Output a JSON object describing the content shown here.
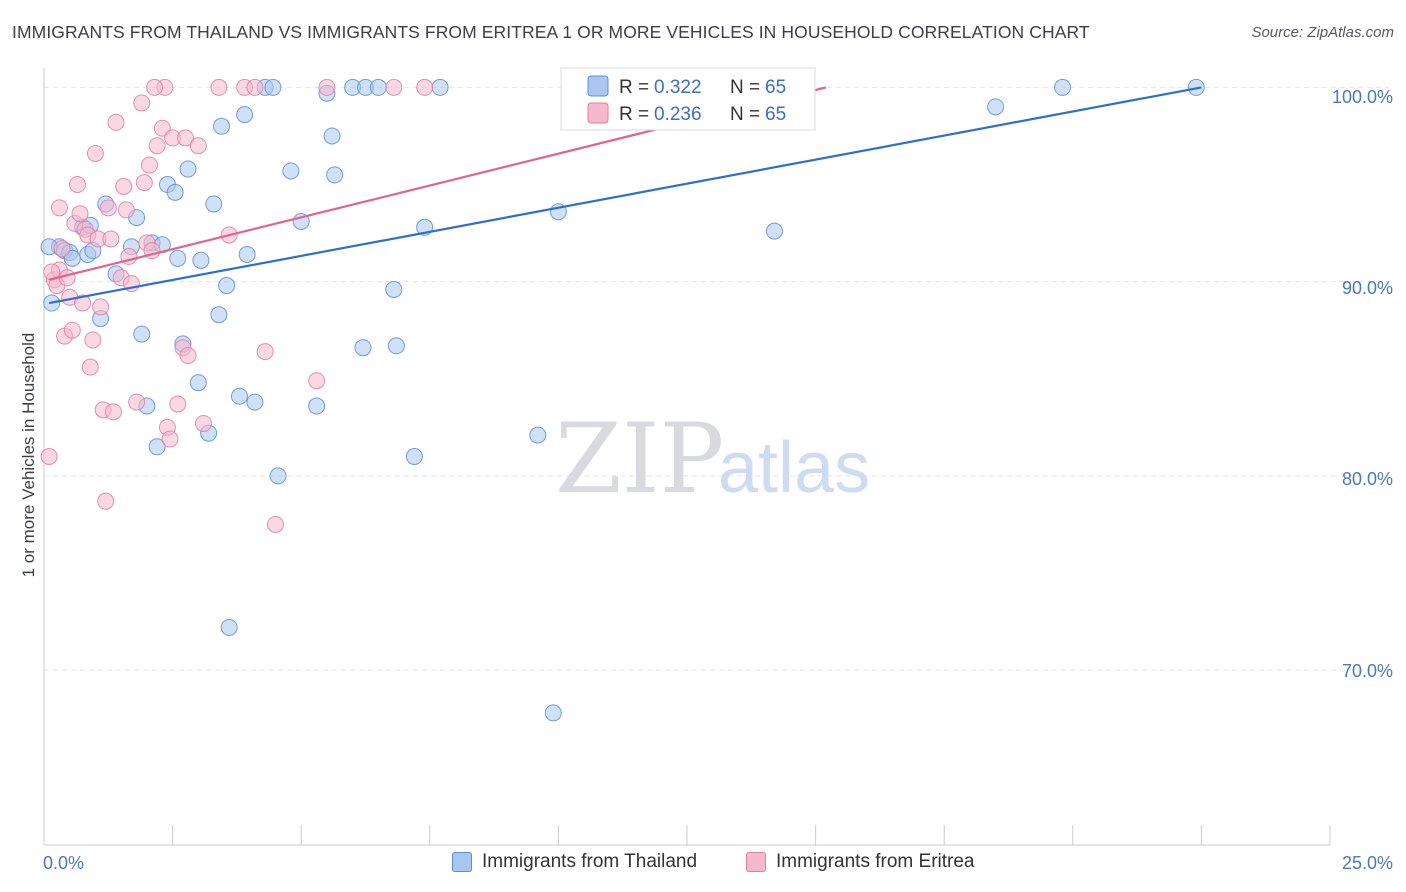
{
  "header": {
    "title": "IMMIGRANTS FROM THAILAND VS IMMIGRANTS FROM ERITREA 1 OR MORE VEHICLES IN HOUSEHOLD CORRELATION CHART",
    "source": "Source: ZipAtlas.com"
  },
  "watermark": {
    "zip": "ZIP",
    "atlas": "atlas"
  },
  "legend": {
    "r_label": "R =",
    "n_label": "N =",
    "entries": [
      {
        "r": "0.322",
        "n": "65"
      },
      {
        "r": "0.236",
        "n": "65"
      }
    ]
  },
  "bottom_legend": [
    "Immigrants from Thailand",
    "Immigrants from Eritrea"
  ],
  "colors": {
    "thailand_fill": "#a9c6f0",
    "thailand_stroke": "#5a8fd6",
    "thailand_line": "#2f6fcc",
    "eritrea_fill": "#f5b8cc",
    "eritrea_stroke": "#e07fa0",
    "eritrea_line": "#e0648e",
    "tick_text": "#4a78c0",
    "grid": "#e2e4e8"
  },
  "chart_data": {
    "type": "scatter",
    "xlabel": "",
    "ylabel": "1 or more Vehicles in Household",
    "xlim": [
      0,
      25
    ],
    "ylim": [
      61,
      101
    ],
    "x_tick_labels": [
      "0.0%",
      "25.0%"
    ],
    "y_ticks": [
      70,
      80,
      90,
      100
    ],
    "y_tick_labels": [
      "70.0%",
      "80.0%",
      "90.0%",
      "100.0%"
    ],
    "grid": true,
    "series": [
      {
        "name": "Immigrants from Thailand",
        "trend": {
          "x": [
            0.1,
            22.5
          ],
          "y": [
            88.9,
            100.0
          ]
        },
        "points": [
          [
            0.15,
            88.9
          ],
          [
            0.3,
            91.8
          ],
          [
            0.4,
            91.6
          ],
          [
            0.5,
            91.5
          ],
          [
            0.55,
            91.2
          ],
          [
            0.75,
            92.8
          ],
          [
            0.85,
            91.4
          ],
          [
            0.95,
            91.6
          ],
          [
            1.2,
            94.0
          ],
          [
            1.4,
            90.4
          ],
          [
            1.7,
            91.8
          ],
          [
            1.8,
            93.3
          ],
          [
            1.9,
            87.3
          ],
          [
            2.0,
            83.6
          ],
          [
            2.1,
            92.0
          ],
          [
            2.2,
            81.5
          ],
          [
            2.3,
            91.9
          ],
          [
            2.4,
            95.0
          ],
          [
            2.55,
            94.6
          ],
          [
            2.7,
            86.8
          ],
          [
            2.8,
            95.8
          ],
          [
            3.0,
            84.8
          ],
          [
            3.05,
            91.1
          ],
          [
            3.2,
            82.2
          ],
          [
            3.3,
            94.0
          ],
          [
            3.4,
            88.3
          ],
          [
            3.45,
            98.0
          ],
          [
            3.55,
            89.8
          ],
          [
            3.6,
            72.2
          ],
          [
            3.8,
            84.1
          ],
          [
            3.9,
            98.6
          ],
          [
            3.95,
            91.4
          ],
          [
            4.1,
            83.8
          ],
          [
            4.3,
            100.0
          ],
          [
            4.55,
            80.0
          ],
          [
            4.8,
            95.7
          ],
          [
            5.0,
            93.1
          ],
          [
            5.3,
            83.6
          ],
          [
            5.5,
            99.7
          ],
          [
            5.6,
            97.5
          ],
          [
            5.65,
            95.5
          ],
          [
            6.0,
            100.0
          ],
          [
            6.2,
            86.6
          ],
          [
            6.25,
            100.0
          ],
          [
            6.5,
            100.0
          ],
          [
            6.8,
            89.6
          ],
          [
            6.85,
            86.7
          ],
          [
            7.2,
            81.0
          ],
          [
            7.4,
            92.8
          ],
          [
            7.7,
            100.0
          ],
          [
            9.6,
            82.1
          ],
          [
            9.9,
            67.8
          ],
          [
            10.0,
            93.6
          ],
          [
            11.3,
            100.0
          ],
          [
            11.8,
            100.0
          ],
          [
            14.0,
            100.0
          ],
          [
            14.2,
            92.6
          ],
          [
            18.5,
            99.0
          ],
          [
            19.8,
            100.0
          ],
          [
            22.4,
            100.0
          ],
          [
            0.1,
            91.8
          ],
          [
            0.9,
            92.9
          ],
          [
            1.1,
            88.1
          ],
          [
            2.6,
            91.2
          ],
          [
            4.45,
            100.0
          ]
        ]
      },
      {
        "name": "Immigrants from Eritrea",
        "trend": {
          "x": [
            0.1,
            15.2
          ],
          "y": [
            90.1,
            100.0
          ]
        },
        "points": [
          [
            0.1,
            81.0
          ],
          [
            0.2,
            90.1
          ],
          [
            0.25,
            89.8
          ],
          [
            0.3,
            90.6
          ],
          [
            0.3,
            93.8
          ],
          [
            0.35,
            91.7
          ],
          [
            0.4,
            87.2
          ],
          [
            0.5,
            89.2
          ],
          [
            0.55,
            87.5
          ],
          [
            0.6,
            93.0
          ],
          [
            0.65,
            95.0
          ],
          [
            0.7,
            93.5
          ],
          [
            0.75,
            88.9
          ],
          [
            0.8,
            92.7
          ],
          [
            0.85,
            92.4
          ],
          [
            0.9,
            85.6
          ],
          [
            0.95,
            87.0
          ],
          [
            1.0,
            96.6
          ],
          [
            1.05,
            92.2
          ],
          [
            1.1,
            88.7
          ],
          [
            1.15,
            83.4
          ],
          [
            1.2,
            78.7
          ],
          [
            1.25,
            93.8
          ],
          [
            1.3,
            92.2
          ],
          [
            1.35,
            83.3
          ],
          [
            1.4,
            98.2
          ],
          [
            1.5,
            90.2
          ],
          [
            1.55,
            94.9
          ],
          [
            1.6,
            93.7
          ],
          [
            1.7,
            89.9
          ],
          [
            1.8,
            83.8
          ],
          [
            1.9,
            99.2
          ],
          [
            1.95,
            95.1
          ],
          [
            2.0,
            92.0
          ],
          [
            2.05,
            96.0
          ],
          [
            2.1,
            91.6
          ],
          [
            2.2,
            97.0
          ],
          [
            2.3,
            97.9
          ],
          [
            2.35,
            100.0
          ],
          [
            2.4,
            82.5
          ],
          [
            2.45,
            81.9
          ],
          [
            2.5,
            97.4
          ],
          [
            2.6,
            83.7
          ],
          [
            2.7,
            86.6
          ],
          [
            2.75,
            97.4
          ],
          [
            2.8,
            86.2
          ],
          [
            3.0,
            97.0
          ],
          [
            3.1,
            82.7
          ],
          [
            3.4,
            100.0
          ],
          [
            3.6,
            92.4
          ],
          [
            3.9,
            100.0
          ],
          [
            4.1,
            100.0
          ],
          [
            4.3,
            86.4
          ],
          [
            4.5,
            77.5
          ],
          [
            5.3,
            84.9
          ],
          [
            5.5,
            100.0
          ],
          [
            6.8,
            100.0
          ],
          [
            7.4,
            100.0
          ],
          [
            11.2,
            100.0
          ],
          [
            11.6,
            100.0
          ],
          [
            0.15,
            90.5
          ],
          [
            0.45,
            90.2
          ],
          [
            1.65,
            91.3
          ],
          [
            2.15,
            100.0
          ],
          [
            12.0,
            100.0
          ]
        ]
      }
    ]
  }
}
